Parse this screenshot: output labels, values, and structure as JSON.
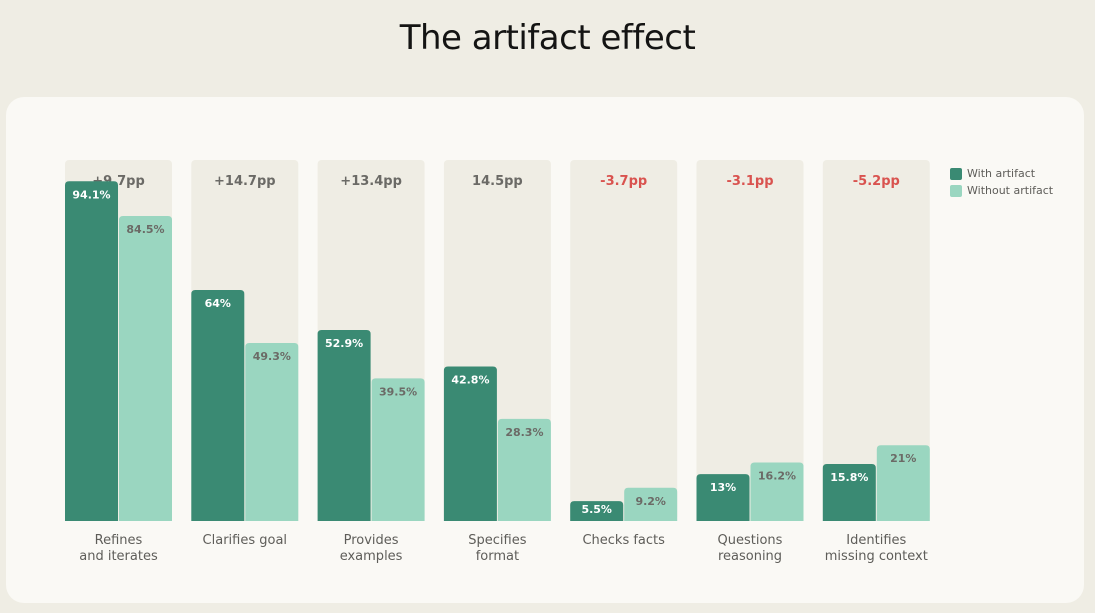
{
  "title": "The artifact effect",
  "colors": {
    "with": "#3a8a73",
    "without": "#9ad6c0",
    "column_bg": "#efede4",
    "positive_diff": "#6b6a66",
    "negative_diff": "#d9534f",
    "label_with": "#ffffff",
    "label_without": "#6b6a66",
    "category": "#5e5d59"
  },
  "legend": {
    "with_label": "With artifact",
    "without_label": "Without artifact"
  },
  "chart_data": {
    "type": "bar",
    "title": "The artifact effect",
    "ylim": [
      0,
      100
    ],
    "categories": [
      [
        "Refines",
        "and iterates"
      ],
      [
        "Clarifies goal"
      ],
      [
        "Provides",
        "examples"
      ],
      [
        "Specifies",
        "format"
      ],
      [
        "Checks facts"
      ],
      [
        "Questions",
        "reasoning"
      ],
      [
        "Identifies",
        "missing context"
      ]
    ],
    "series": [
      {
        "name": "With artifact",
        "values": [
          94.1,
          64,
          52.9,
          42.8,
          5.5,
          13,
          15.8
        ],
        "labels": [
          "94.1%",
          "64%",
          "52.9%",
          "42.8%",
          "5.5%",
          "13%",
          "15.8%"
        ]
      },
      {
        "name": "Without artifact",
        "values": [
          84.5,
          49.3,
          39.5,
          28.3,
          9.2,
          16.2,
          21
        ],
        "labels": [
          "84.5%",
          "49.3%",
          "39.5%",
          "28.3%",
          "9.2%",
          "16.2%",
          "21%"
        ]
      }
    ],
    "differences": [
      "+9.7pp",
      "+14.7pp",
      "+13.4pp",
      "14.5pp",
      "-3.7pp",
      "-3.1pp",
      "-5.2pp"
    ],
    "difference_negative": [
      false,
      false,
      false,
      false,
      true,
      true,
      true
    ]
  }
}
